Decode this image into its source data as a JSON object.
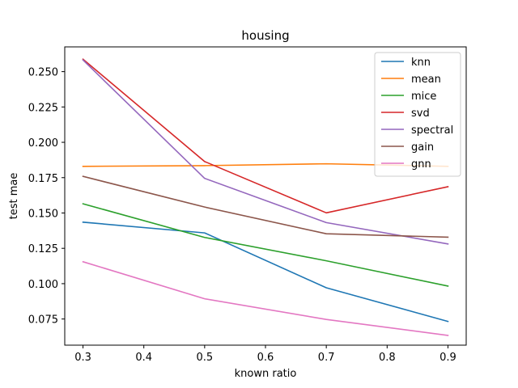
{
  "chart_data": {
    "type": "line",
    "title": "housing",
    "xlabel": "known ratio",
    "ylabel": "test mae",
    "x": [
      0.3,
      0.5,
      0.7,
      0.9
    ],
    "xlim": [
      0.27,
      0.93
    ],
    "ylim": [
      0.0565,
      0.2675
    ],
    "xticks": [
      0.3,
      0.4,
      0.5,
      0.6,
      0.7,
      0.8,
      0.9
    ],
    "xtick_labels": [
      "0.3",
      "0.4",
      "0.5",
      "0.6",
      "0.7",
      "0.8",
      "0.9"
    ],
    "yticks": [
      0.075,
      0.1,
      0.125,
      0.15,
      0.175,
      0.2,
      0.225,
      0.25
    ],
    "ytick_labels": [
      "0.075",
      "0.100",
      "0.125",
      "0.150",
      "0.175",
      "0.200",
      "0.225",
      "0.250"
    ],
    "grid": false,
    "legend_position": "top-right",
    "series": [
      {
        "name": "knn",
        "color": "#1f77b4",
        "values": [
          0.1435,
          0.1359,
          0.0971,
          0.0733
        ]
      },
      {
        "name": "mean",
        "color": "#ff7f0e",
        "values": [
          0.183,
          0.1835,
          0.1848,
          0.183
        ]
      },
      {
        "name": "mice",
        "color": "#2ca02c",
        "values": [
          0.1565,
          0.1327,
          0.1162,
          0.0983
        ]
      },
      {
        "name": "svd",
        "color": "#d62728",
        "values": [
          0.2588,
          0.1864,
          0.1501,
          0.1686
        ]
      },
      {
        "name": "spectral",
        "color": "#9467bd",
        "values": [
          0.2582,
          0.1745,
          0.1432,
          0.1281
        ]
      },
      {
        "name": "gain",
        "color": "#8c564b",
        "values": [
          0.1759,
          0.1542,
          0.1353,
          0.1329
        ]
      },
      {
        "name": "gnn",
        "color": "#e377c2",
        "values": [
          0.1155,
          0.0893,
          0.0747,
          0.0634
        ]
      }
    ]
  }
}
